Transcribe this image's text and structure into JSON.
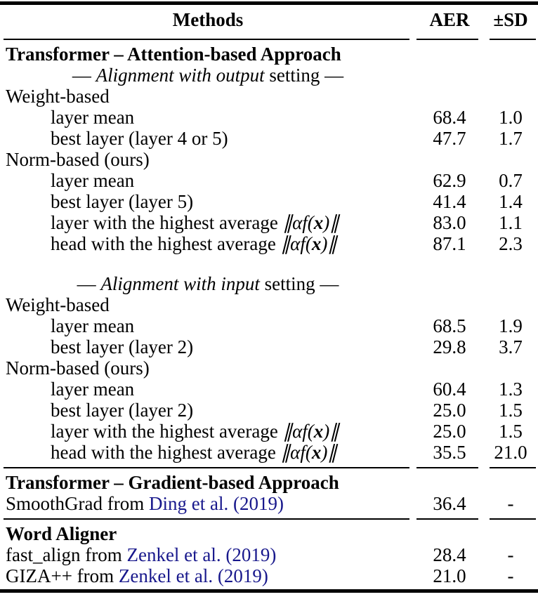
{
  "colors": {
    "citation_link": "#18188c",
    "text": "#000000",
    "background": "#ffffff"
  },
  "table": {
    "header": {
      "methods": "Methods",
      "aer": "AER",
      "sd": "±SD"
    },
    "rows": [
      {
        "type": "section",
        "label": "Transformer – Attention-based Approach"
      },
      {
        "type": "setting",
        "pre": "— ",
        "em": "Alignment with output",
        "post": " setting —"
      },
      {
        "type": "group",
        "label": "Weight-based"
      },
      {
        "type": "data",
        "label": "layer mean",
        "aer": "68.4",
        "sd": "1.0"
      },
      {
        "type": "data",
        "label": "best layer (layer 4 or 5)",
        "aer": "47.7",
        "sd": "1.7"
      },
      {
        "type": "group",
        "label": "Norm-based (ours)"
      },
      {
        "type": "data",
        "label": "layer mean",
        "aer": "62.9",
        "sd": "0.7"
      },
      {
        "type": "data",
        "label": "best layer (layer 5)",
        "aer": "41.4",
        "sd": "1.4"
      },
      {
        "type": "math",
        "pre": "layer with the highest average ",
        "m1": "∥αf(",
        "mx": "x",
        "m2": ")∥",
        "aer": "83.0",
        "sd": "1.1"
      },
      {
        "type": "math",
        "pre": "head with the highest average ",
        "m1": "∥αf(",
        "mx": "x",
        "m2": ")∥",
        "aer": "87.1",
        "sd": "2.3"
      },
      {
        "type": "spacer"
      },
      {
        "type": "setting",
        "pre": "— ",
        "em": "Alignment with input",
        "post": " setting —"
      },
      {
        "type": "group",
        "label": "Weight-based"
      },
      {
        "type": "data",
        "label": "layer mean",
        "aer": "68.5",
        "sd": "1.9"
      },
      {
        "type": "data",
        "label": "best layer (layer 2)",
        "aer": "29.8",
        "sd": "3.7"
      },
      {
        "type": "group",
        "label": "Norm-based (ours)"
      },
      {
        "type": "data",
        "label": "layer mean",
        "aer": "60.4",
        "sd": "1.3"
      },
      {
        "type": "data",
        "label": "best layer (layer 2)",
        "aer": "25.0",
        "sd": "1.5"
      },
      {
        "type": "math",
        "pre": "layer with the highest average ",
        "m1": "∥αf(",
        "mx": "x",
        "m2": ")∥",
        "aer": "25.0",
        "sd": "1.5"
      },
      {
        "type": "math",
        "pre": "head with the highest average ",
        "m1": "∥αf(",
        "mx": "x",
        "m2": ")∥",
        "aer": "35.5",
        "sd": "21.0"
      },
      {
        "type": "section",
        "label": "Transformer – Gradient-based Approach"
      },
      {
        "type": "cite",
        "pre": "SmoothGrad from ",
        "cite": "Ding et al. (2019)",
        "aer": "36.4",
        "sd": "-"
      },
      {
        "type": "section",
        "label": "Word Aligner"
      },
      {
        "type": "cite",
        "pre": "fast_align from ",
        "cite": "Zenkel et al. (2019)",
        "aer": "28.4",
        "sd": "-"
      },
      {
        "type": "cite",
        "pre": "GIZA++ from ",
        "cite": "Zenkel et al. (2019)",
        "aer": "21.0",
        "sd": "-"
      }
    ]
  }
}
